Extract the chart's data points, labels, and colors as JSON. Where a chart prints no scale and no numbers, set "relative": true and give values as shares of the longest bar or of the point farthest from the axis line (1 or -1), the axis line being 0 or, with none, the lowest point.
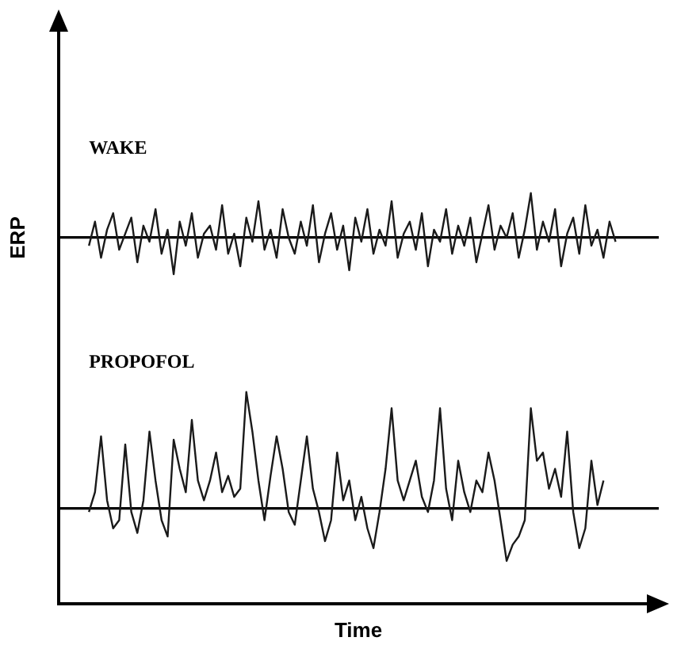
{
  "chart_data": [
    {
      "type": "line",
      "relative": true,
      "ylabel": "ERP",
      "legend": false,
      "grid": false,
      "tick_labels": false,
      "marker": "none",
      "categories": [
        null,
        null,
        null,
        null,
        null,
        null,
        null,
        null,
        null,
        null,
        null,
        null,
        null,
        null,
        null,
        null,
        null,
        null,
        null,
        null,
        null,
        null,
        null,
        null,
        null,
        null,
        null,
        null,
        null,
        null,
        null,
        null,
        null,
        null,
        null,
        null,
        null,
        null,
        null,
        null,
        null,
        null,
        null,
        null,
        null,
        null,
        null,
        null,
        null,
        null,
        null,
        null,
        null,
        null,
        null,
        null,
        null,
        null,
        null,
        null,
        null,
        null,
        null,
        null,
        null,
        null,
        null,
        null,
        null,
        null,
        null,
        null,
        null,
        null,
        null,
        null,
        null,
        null,
        null,
        null,
        null,
        null,
        null,
        null,
        null,
        null,
        null,
        null,
        null,
        null,
        null,
        null,
        null,
        null,
        null,
        null,
        null,
        null,
        null,
        null
      ],
      "series": [
        {
          "name": "WAKE",
          "color": "#1a1a1a",
          "values": [
            null,
            null,
            null,
            null,
            null,
            -0.18,
            0.36,
            -0.45,
            0.18,
            0.55,
            -0.27,
            0.09,
            0.45,
            -0.55,
            0.27,
            -0.09,
            0.64,
            -0.36,
            0.18,
            -0.82,
            0.36,
            -0.18,
            0.55,
            -0.45,
            0.09,
            0.27,
            -0.27,
            0.73,
            -0.36,
            0.09,
            -0.64,
            0.45,
            -0.09,
            0.82,
            -0.27,
            0.18,
            -0.45,
            0.64,
            0,
            -0.36,
            0.36,
            -0.18,
            0.73,
            -0.55,
            0.09,
            0.55,
            -0.27,
            0.27,
            -0.73,
            0.45,
            -0.09,
            0.64,
            -0.36,
            0.18,
            -0.18,
            0.82,
            -0.45,
            0.09,
            0.36,
            -0.27,
            0.55,
            -0.64,
            0.18,
            -0.09,
            0.64,
            -0.36,
            0.27,
            -0.18,
            0.45,
            -0.55,
            0.09,
            0.73,
            -0.27,
            0.27,
            0,
            0.55,
            -0.45,
            0.18,
            1,
            -0.27,
            0.36,
            -0.09,
            0.64,
            -0.64,
            0.09,
            0.45,
            -0.36,
            0.73,
            -0.18,
            0.18,
            -0.45,
            0.36,
            -0.09,
            null,
            null,
            null,
            null,
            null,
            null,
            null
          ]
        }
      ]
    },
    {
      "type": "line",
      "relative": true,
      "xlabel": "Time",
      "legend": false,
      "grid": false,
      "tick_labels": false,
      "marker": "none",
      "categories": [
        null,
        null,
        null,
        null,
        null,
        null,
        null,
        null,
        null,
        null,
        null,
        null,
        null,
        null,
        null,
        null,
        null,
        null,
        null,
        null,
        null,
        null,
        null,
        null,
        null,
        null,
        null,
        null,
        null,
        null,
        null,
        null,
        null,
        null,
        null,
        null,
        null,
        null,
        null,
        null,
        null,
        null,
        null,
        null,
        null,
        null,
        null,
        null,
        null,
        null,
        null,
        null,
        null,
        null,
        null,
        null,
        null,
        null,
        null,
        null,
        null,
        null,
        null,
        null,
        null,
        null,
        null,
        null,
        null,
        null,
        null,
        null,
        null,
        null,
        null,
        null,
        null,
        null,
        null,
        null,
        null,
        null,
        null,
        null,
        null,
        null,
        null,
        null,
        null,
        null,
        null,
        null,
        null,
        null,
        null,
        null,
        null,
        null,
        null,
        null
      ],
      "series": [
        {
          "name": "PROPOFOL",
          "color": "#1a1a1a",
          "values": [
            null,
            null,
            null,
            null,
            null,
            -0.03,
            0.14,
            0.62,
            0.07,
            -0.17,
            -0.1,
            0.55,
            -0.03,
            -0.21,
            0.07,
            0.66,
            0.24,
            -0.1,
            -0.24,
            0.59,
            0.34,
            0.14,
            0.76,
            0.24,
            0.07,
            0.24,
            0.48,
            0.14,
            0.28,
            0.1,
            0.17,
            1,
            0.66,
            0.24,
            -0.1,
            0.28,
            0.62,
            0.34,
            -0.03,
            -0.14,
            0.24,
            0.62,
            0.17,
            -0.03,
            -0.28,
            -0.1,
            0.48,
            0.07,
            0.24,
            -0.1,
            0.1,
            -0.17,
            -0.34,
            -0.03,
            0.34,
            0.86,
            0.24,
            0.07,
            0.24,
            0.41,
            0.1,
            -0.03,
            0.24,
            0.86,
            0.17,
            -0.1,
            0.41,
            0.14,
            -0.03,
            0.24,
            0.14,
            0.48,
            0.24,
            -0.1,
            -0.45,
            -0.31,
            -0.24,
            -0.1,
            0.86,
            0.41,
            0.48,
            0.17,
            0.34,
            0.1,
            0.66,
            -0.03,
            -0.34,
            -0.17,
            0.41,
            0.03,
            0.24,
            null,
            null,
            null,
            null,
            null,
            null,
            null,
            null,
            null
          ]
        }
      ]
    }
  ]
}
